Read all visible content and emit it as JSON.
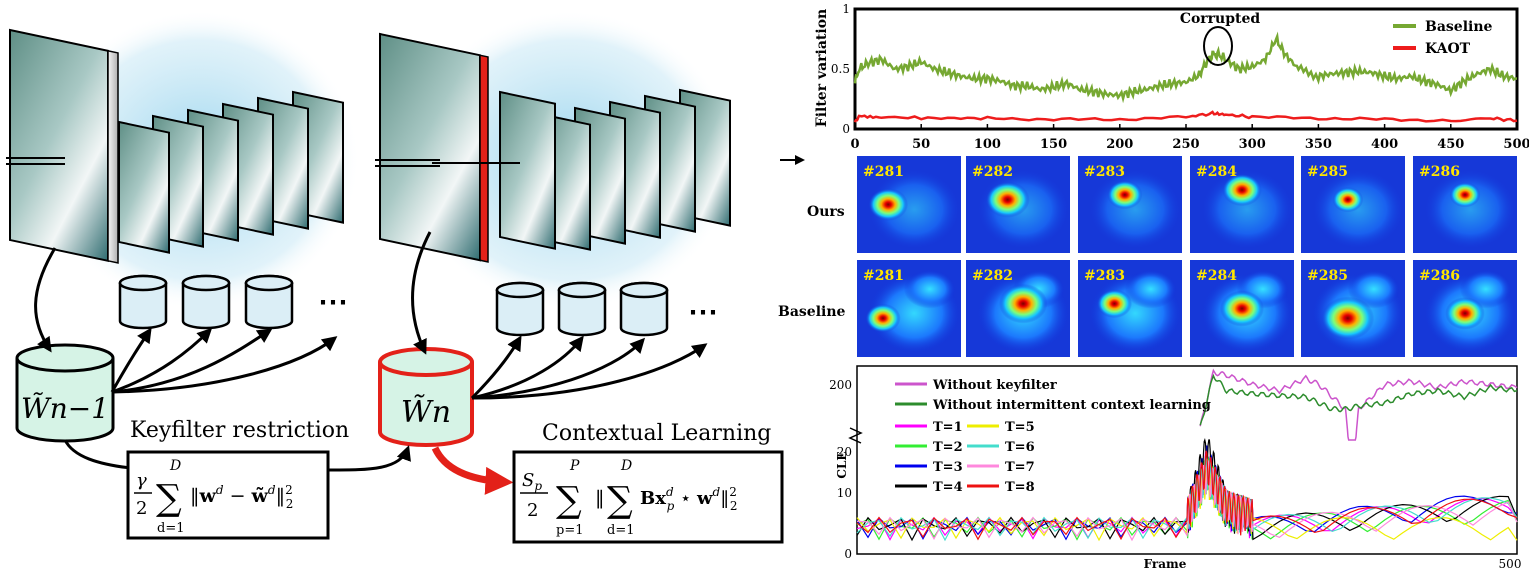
{
  "diagram": {
    "keyfilter_label": "Keyfilter restriction",
    "context_label": "Contextual Learning",
    "filter_prev": "W̃n−1",
    "filter_curr": "W̃n",
    "ellipsis": "⋯",
    "formula1": "γ/2 ∑_{d=1}^{D} ‖w^d − w̃^d‖²₂",
    "formula2": "S_p/2 ∑_{p=1}^{P} ‖ ∑_{d=1}^{D} Bx_p^d ⋆ w^d‖²₂",
    "colors": {
      "highlight": "#e32119",
      "db_fill": "#dbeef6",
      "filter_fill": "#d6f3e6"
    }
  },
  "heatmaps": {
    "row_labels": [
      "Ours",
      "Baseline"
    ],
    "frames": [
      "#281",
      "#282",
      "#283",
      "#284",
      "#285",
      "#286"
    ]
  },
  "chart_data": [
    {
      "type": "line",
      "ylabel": "Filter variation",
      "xlabel": "",
      "xlim": [
        0,
        500
      ],
      "ylim": [
        0,
        1
      ],
      "xticks": [
        0,
        50,
        100,
        150,
        200,
        250,
        300,
        350,
        400,
        450,
        500
      ],
      "yticks": [
        "0",
        "0.5",
        "1"
      ],
      "annotation": "Corrupted",
      "annotation_x": 275,
      "legend": "top-right",
      "series": [
        {
          "name": "Baseline",
          "color": "#76a832",
          "x": [
            0,
            3,
            10,
            20,
            30,
            40,
            50,
            60,
            70,
            80,
            90,
            100,
            110,
            120,
            130,
            140,
            150,
            160,
            170,
            180,
            190,
            200,
            210,
            220,
            230,
            240,
            250,
            260,
            265,
            270,
            275,
            280,
            290,
            300,
            310,
            318,
            325,
            335,
            350,
            360,
            370,
            380,
            390,
            400,
            410,
            420,
            430,
            440,
            450,
            460,
            470,
            480,
            490,
            500
          ],
          "y": [
            0.38,
            0.5,
            0.55,
            0.58,
            0.5,
            0.52,
            0.56,
            0.5,
            0.47,
            0.44,
            0.42,
            0.42,
            0.4,
            0.36,
            0.36,
            0.33,
            0.35,
            0.38,
            0.33,
            0.31,
            0.29,
            0.28,
            0.31,
            0.33,
            0.36,
            0.38,
            0.39,
            0.45,
            0.55,
            0.62,
            0.62,
            0.58,
            0.5,
            0.52,
            0.58,
            0.75,
            0.62,
            0.5,
            0.44,
            0.46,
            0.47,
            0.48,
            0.47,
            0.44,
            0.42,
            0.44,
            0.4,
            0.37,
            0.32,
            0.4,
            0.46,
            0.5,
            0.44,
            0.42
          ]
        },
        {
          "name": "KAOT",
          "color": "#ee1c1c",
          "x": [
            0,
            3,
            20,
            60,
            100,
            150,
            200,
            250,
            270,
            280,
            300,
            350,
            400,
            450,
            480,
            500
          ],
          "y": [
            0.05,
            0.11,
            0.1,
            0.09,
            0.09,
            0.08,
            0.08,
            0.1,
            0.13,
            0.12,
            0.1,
            0.09,
            0.08,
            0.07,
            0.09,
            0.07
          ]
        }
      ]
    },
    {
      "type": "line",
      "ylabel": "CLE",
      "xlabel": "Frame",
      "xlim": [
        0,
        500
      ],
      "ylim": [
        0,
        220
      ],
      "y_axis_broken": true,
      "yticks": [
        "0",
        "10",
        "20",
        "200"
      ],
      "xticks": [
        "0",
        "500"
      ],
      "legend": "top-left",
      "series": [
        {
          "name": "Without keyfilter",
          "color": "#cc55cc",
          "x": [
            260,
            270,
            280,
            300,
            320,
            340,
            350,
            360,
            370,
            375,
            380,
            400,
            420,
            440,
            460,
            480,
            500
          ],
          "y": [
            120,
            210,
            205,
            190,
            180,
            200,
            190,
            170,
            150,
            30,
            150,
            190,
            195,
            185,
            195,
            190,
            185
          ]
        },
        {
          "name": "Without intermittent context learning",
          "color": "#2d8c2d",
          "x": [
            260,
            270,
            280,
            300,
            320,
            340,
            350,
            360,
            370,
            380,
            400,
            420,
            440,
            460,
            480,
            500
          ],
          "y": [
            120,
            205,
            180,
            175,
            172,
            170,
            160,
            150,
            150,
            155,
            160,
            175,
            180,
            170,
            185,
            180
          ]
        },
        {
          "name": "T=1",
          "color": "#ff00ff",
          "x": [
            0,
            250,
            265,
            280,
            300,
            500
          ],
          "y": [
            3,
            3,
            14,
            5,
            3,
            8
          ]
        },
        {
          "name": "T=2",
          "color": "#33ee33",
          "x": [
            0,
            250,
            265,
            280,
            300,
            500
          ],
          "y": [
            3,
            3,
            13,
            5,
            3,
            7
          ]
        },
        {
          "name": "T=3",
          "color": "#0000ee",
          "x": [
            0,
            250,
            265,
            280,
            300,
            500
          ],
          "y": [
            3,
            3,
            15,
            5,
            3,
            9
          ]
        },
        {
          "name": "T=4",
          "color": "#000000",
          "x": [
            0,
            250,
            265,
            280,
            300,
            500
          ],
          "y": [
            3,
            3,
            18,
            5,
            3,
            8
          ]
        },
        {
          "name": "T=5",
          "color": "#eeee00",
          "x": [
            0,
            250,
            265,
            280,
            300,
            500
          ],
          "y": [
            3,
            3,
            12,
            5,
            3,
            3
          ]
        },
        {
          "name": "T=6",
          "color": "#44ddcc",
          "x": [
            0,
            250,
            265,
            280,
            300,
            500
          ],
          "y": [
            3,
            3,
            13,
            5,
            3,
            8
          ]
        },
        {
          "name": "T=7",
          "color": "#ff88dd",
          "x": [
            0,
            250,
            265,
            280,
            300,
            500
          ],
          "y": [
            3,
            3,
            12,
            5,
            3,
            7
          ]
        },
        {
          "name": "T=8",
          "color": "#ee1111",
          "x": [
            0,
            250,
            265,
            280,
            300,
            500
          ],
          "y": [
            3,
            3,
            14,
            5,
            3,
            8
          ]
        }
      ]
    }
  ]
}
